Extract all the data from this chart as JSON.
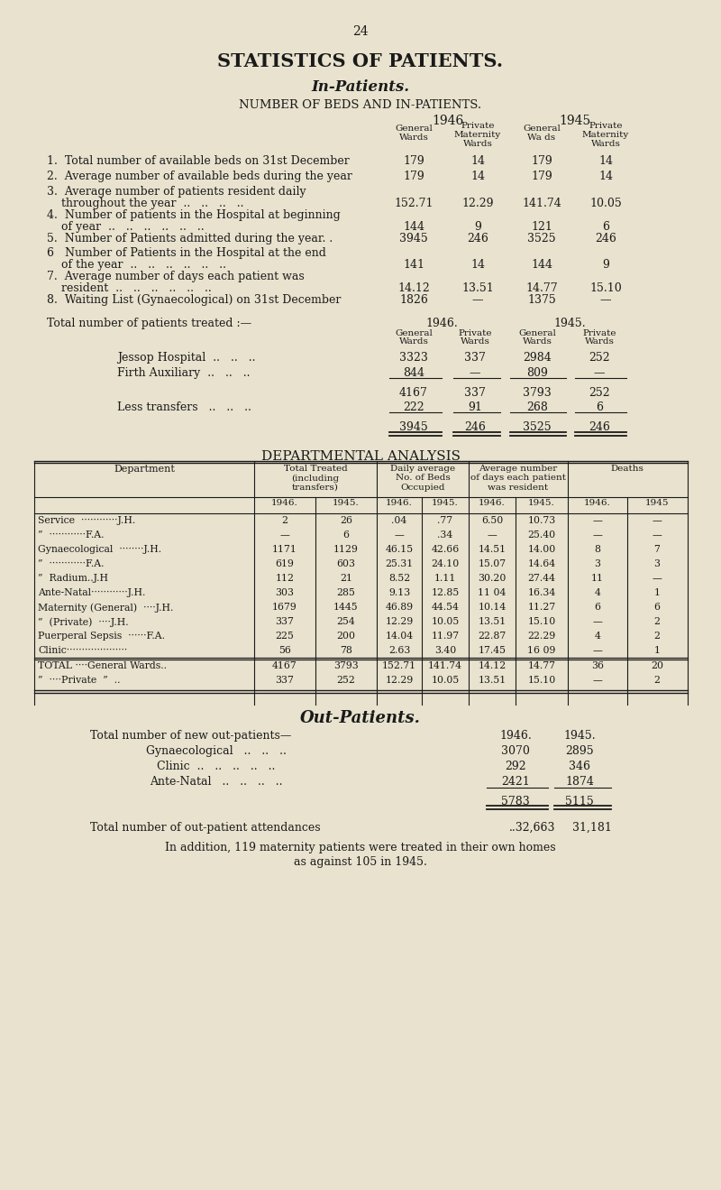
{
  "page_number": "24",
  "main_title": "STATISTICS OF PATIENTS.",
  "subtitle1": "In-Patients.",
  "subtitle2": "NUMBER OF BEDS AND IN-PATIENTS.",
  "bg_color": "#e8e2ce",
  "text_color": "#1a1a1a"
}
